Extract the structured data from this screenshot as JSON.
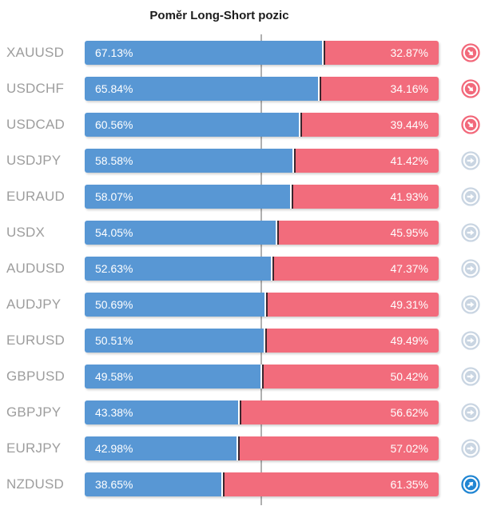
{
  "title": "Poměr Long-Short pozic",
  "colors": {
    "long": "#5897d4",
    "short": "#f26c7c",
    "separator": "#3a262e",
    "gridline": "#b0b0b0",
    "label": "#9d9d9d",
    "trend_down": "#f2697b",
    "trend_neutral": "#c9d5e2",
    "trend_up": "#2186d3"
  },
  "chart_data": {
    "type": "bar",
    "orientation": "horizontal-stacked",
    "title": "Poměr Long-Short pozic",
    "unit": "%",
    "series_names": [
      "Long",
      "Short"
    ],
    "xlim": [
      0,
      100
    ],
    "midline": 50,
    "legend": "none",
    "rows": [
      {
        "pair": "XAUUSD",
        "long": 67.13,
        "short": 32.87,
        "long_label": "67.13%",
        "short_label": "32.87%",
        "trend": "down"
      },
      {
        "pair": "USDCHF",
        "long": 65.84,
        "short": 34.16,
        "long_label": "65.84%",
        "short_label": "34.16%",
        "trend": "down"
      },
      {
        "pair": "USDCAD",
        "long": 60.56,
        "short": 39.44,
        "long_label": "60.56%",
        "short_label": "39.44%",
        "trend": "down"
      },
      {
        "pair": "USDJPY",
        "long": 58.58,
        "short": 41.42,
        "long_label": "58.58%",
        "short_label": "41.42%",
        "trend": "neutral"
      },
      {
        "pair": "EURAUD",
        "long": 58.07,
        "short": 41.93,
        "long_label": "58.07%",
        "short_label": "41.93%",
        "trend": "neutral"
      },
      {
        "pair": "USDX",
        "long": 54.05,
        "short": 45.95,
        "long_label": "54.05%",
        "short_label": "45.95%",
        "trend": "neutral"
      },
      {
        "pair": "AUDUSD",
        "long": 52.63,
        "short": 47.37,
        "long_label": "52.63%",
        "short_label": "47.37%",
        "trend": "neutral"
      },
      {
        "pair": "AUDJPY",
        "long": 50.69,
        "short": 49.31,
        "long_label": "50.69%",
        "short_label": "49.31%",
        "trend": "neutral"
      },
      {
        "pair": "EURUSD",
        "long": 50.51,
        "short": 49.49,
        "long_label": "50.51%",
        "short_label": "49.49%",
        "trend": "neutral"
      },
      {
        "pair": "GBPUSD",
        "long": 49.58,
        "short": 50.42,
        "long_label": "49.58%",
        "short_label": "50.42%",
        "trend": "neutral"
      },
      {
        "pair": "GBPJPY",
        "long": 43.38,
        "short": 56.62,
        "long_label": "43.38%",
        "short_label": "56.62%",
        "trend": "neutral"
      },
      {
        "pair": "EURJPY",
        "long": 42.98,
        "short": 57.02,
        "long_label": "42.98%",
        "short_label": "57.02%",
        "trend": "neutral"
      },
      {
        "pair": "NZDUSD",
        "long": 38.65,
        "short": 61.35,
        "long_label": "38.65%",
        "short_label": "61.35%",
        "trend": "up"
      }
    ]
  },
  "trend_icons": {
    "down": "circled-arrow-down-right",
    "neutral": "circled-arrow-right",
    "up": "circled-arrow-up-right"
  }
}
